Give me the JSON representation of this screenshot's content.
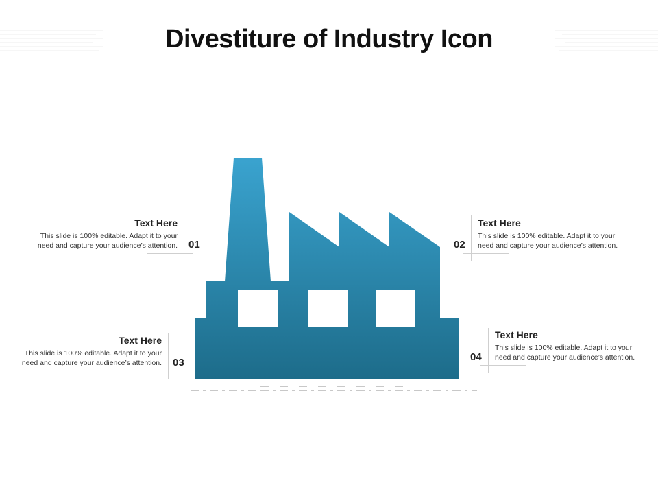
{
  "title": "Divestiture of Industry Icon",
  "colors": {
    "factory_top": "#3aa3cf",
    "factory_bottom": "#1d6c8a",
    "ground_dash": "#c8c8c8"
  },
  "callouts": [
    {
      "id": "01",
      "heading": "Text Here",
      "line1": "This slide is 100% editable. Adapt it to your",
      "line2": "need and capture your audience’s attention."
    },
    {
      "id": "02",
      "heading": "Text Here",
      "line1": "This slide is 100% editable. Adapt it to your",
      "line2": "need and capture your audience’s attention."
    },
    {
      "id": "03",
      "heading": "Text Here",
      "line1": "This slide is 100% editable. Adapt it to your",
      "line2": "need and capture your audience’s attention."
    },
    {
      "id": "04",
      "heading": "Text Here",
      "line1": "This slide is 100% editable. Adapt it to your",
      "line2": "need and capture your audience’s attention."
    }
  ]
}
